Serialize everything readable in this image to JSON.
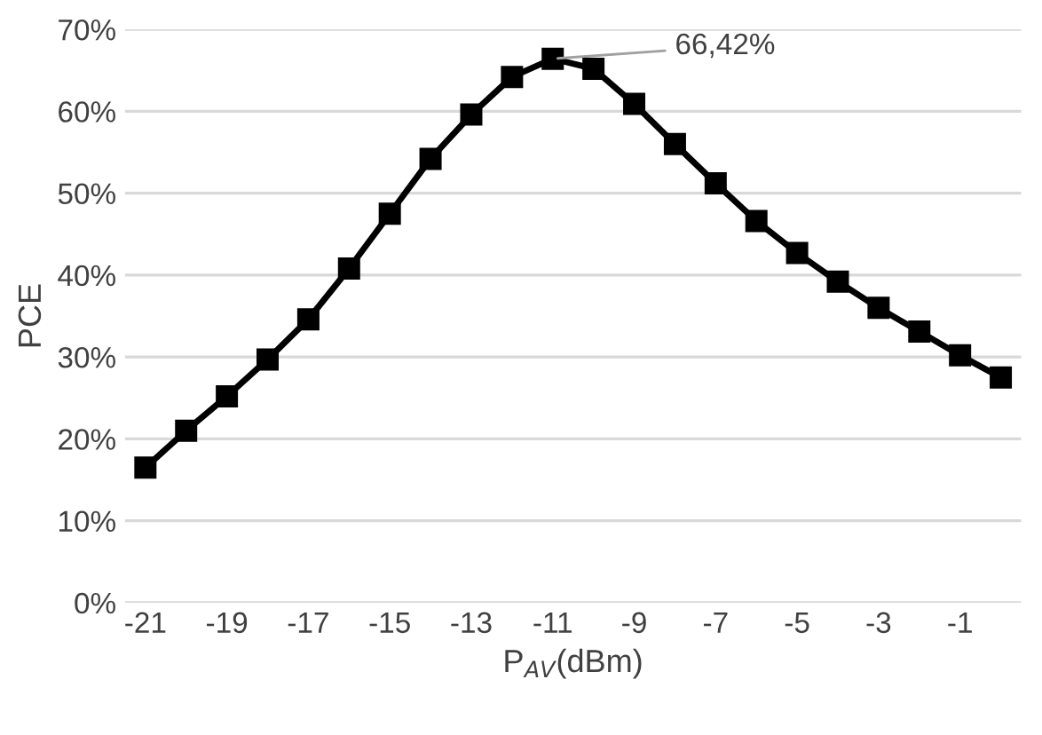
{
  "chart_data": {
    "type": "line",
    "xlabel": "P$_{AV}$(dBm)",
    "ylabel": "PCE",
    "categories": [
      "-21",
      null,
      "-19",
      null,
      "-17",
      null,
      "-15",
      null,
      "-13",
      null,
      "-11",
      null,
      "-9",
      null,
      "-7",
      null,
      "-5",
      null,
      "-3",
      null,
      "-1",
      null
    ],
    "series": [
      {
        "color": "#000000",
        "values": [
          16.5,
          21,
          25.2,
          29.7,
          34.6,
          40.8,
          47.5,
          54.2,
          59.6,
          64.2,
          66.42,
          65.2,
          60.9,
          56,
          51.2,
          46.6,
          42.7,
          39.2,
          36,
          33.1,
          30.2,
          27.5
        ]
      }
    ],
    "ylim": [
      0,
      70
    ],
    "yticks": [
      {
        "value": 0,
        "label": "0%"
      },
      {
        "value": 10,
        "label": "10%"
      },
      {
        "value": 20,
        "label": "20%"
      },
      {
        "value": 30,
        "label": "30%"
      },
      {
        "value": 40,
        "label": "40%"
      },
      {
        "value": 50,
        "label": "50%"
      },
      {
        "value": 60,
        "label": "60%"
      },
      {
        "value": 70,
        "label": "70%"
      }
    ],
    "annotations": [
      {
        "text": "66,42%",
        "x": "-11",
        "y": 66.42
      }
    ],
    "grid": "y",
    "marker": "square",
    "line_style": "solid",
    "legend": false
  }
}
